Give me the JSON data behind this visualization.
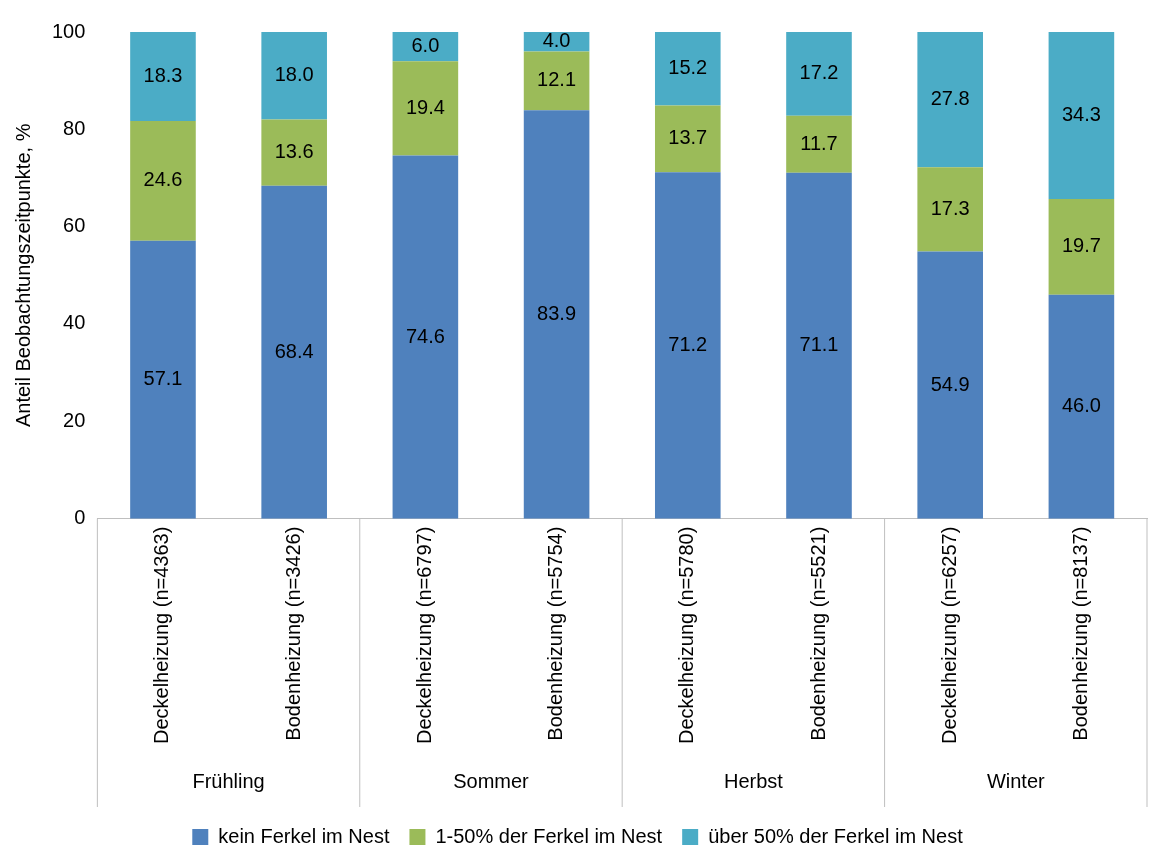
{
  "chart_data": {
    "type": "bar",
    "stacked": true,
    "ylabel": "Anteil Beobachtungszeitpunkte, %",
    "categories": [
      "Deckelheizung (n=4363)",
      "Bodenheizung (n=3426)",
      "Deckelheizung (n=6797)",
      "Bodenheizung (n=5754)",
      "Deckelheizung (n=5780)",
      "Bodenheizung (n=5521)",
      "Deckelheizung (n=6257)",
      "Bodenheizung (n=8137)"
    ],
    "annotations": [
      "Frühling",
      "Sommer",
      "Herbst",
      "Winter"
    ],
    "series": [
      {
        "name": "kein Ferkel im Nest",
        "color": "#4f81bd",
        "values": [
          57.1,
          68.4,
          74.6,
          83.9,
          71.2,
          71.1,
          54.9,
          46.0
        ],
        "value_labels": [
          "57.1",
          "68.4",
          "74.6",
          "83.9",
          "71.2",
          "71.1",
          "54.9",
          "46.0"
        ]
      },
      {
        "name": "1-50% der Ferkel im Nest",
        "color": "#9bbb59",
        "values": [
          24.6,
          13.6,
          19.4,
          12.1,
          13.7,
          11.7,
          17.3,
          19.7
        ],
        "value_labels": [
          "24.6",
          "13.6",
          "19.4",
          "12.1",
          "13.7",
          "11.7",
          "17.3",
          "19.7"
        ]
      },
      {
        "name": "über 50% der Ferkel im Nest",
        "color": "#4bacc6",
        "values": [
          18.3,
          18.0,
          6.0,
          4.0,
          15.2,
          17.2,
          27.8,
          34.3
        ],
        "value_labels": [
          "18.3",
          "18.0",
          "6.0",
          "4.0",
          "15.2",
          "17.2",
          "27.8",
          "34.3"
        ]
      }
    ],
    "ylim": [
      0,
      100
    ],
    "yticks": [
      0,
      20,
      40,
      60,
      80,
      100
    ],
    "grid": false,
    "legend": "bottom"
  }
}
